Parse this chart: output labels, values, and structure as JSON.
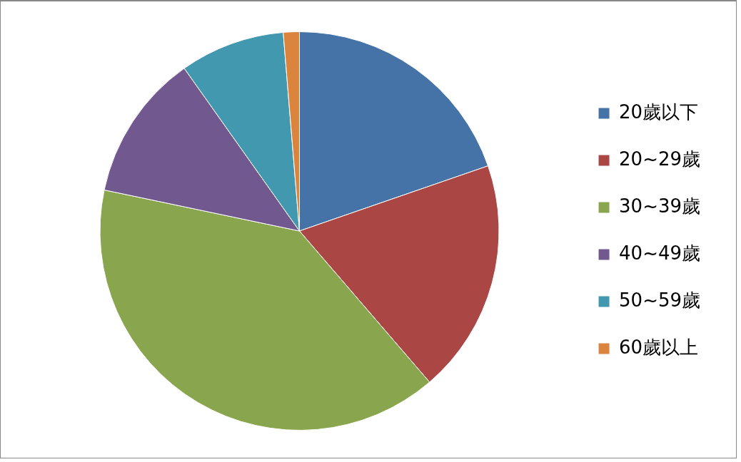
{
  "chart_data": {
    "type": "pie",
    "categories": [
      "20歲以下",
      "20~29歲",
      "30~39歲",
      "40~49歲",
      "50~59歲",
      "60歲以上"
    ],
    "values": [
      19.7,
      19.0,
      39.6,
      11.9,
      8.5,
      1.3
    ],
    "colors": [
      "#4572a7",
      "#aa4643",
      "#89a54e",
      "#71588f",
      "#4198af",
      "#db843d"
    ],
    "legend": "right"
  }
}
